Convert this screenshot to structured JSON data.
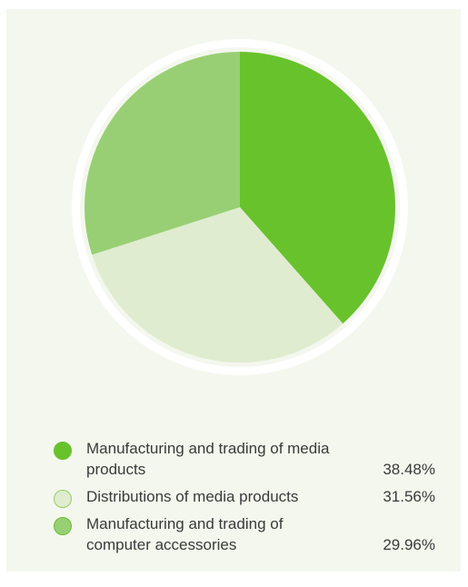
{
  "chart_data": {
    "type": "pie",
    "categories": [
      "Manufacturing and trading of media products",
      "Distributions of media products",
      "Manufacturing and trading of computer accessories"
    ],
    "values": [
      38.48,
      31.56,
      29.96
    ],
    "value_labels": [
      "38.48%",
      "31.56%",
      "29.96%"
    ],
    "colors": [
      "#68c22c",
      "#dfeccf",
      "#98cf74"
    ],
    "swatch_borders": [
      "#68c22c",
      "#8fcf63",
      "#68c22c"
    ],
    "start_angle_deg": 0,
    "direction": "clockwise",
    "legend_position": "bottom"
  },
  "legend": {
    "items": [
      {
        "label": "Manufacturing and trading of media products",
        "value": "38.48%"
      },
      {
        "label": "Distributions of media products",
        "value": "31.56%"
      },
      {
        "label": "Manufacturing and trading of computer accessories",
        "value": "29.96%"
      }
    ]
  },
  "colors": {
    "background": "#f4f7ee",
    "ring": "#ffffff"
  }
}
